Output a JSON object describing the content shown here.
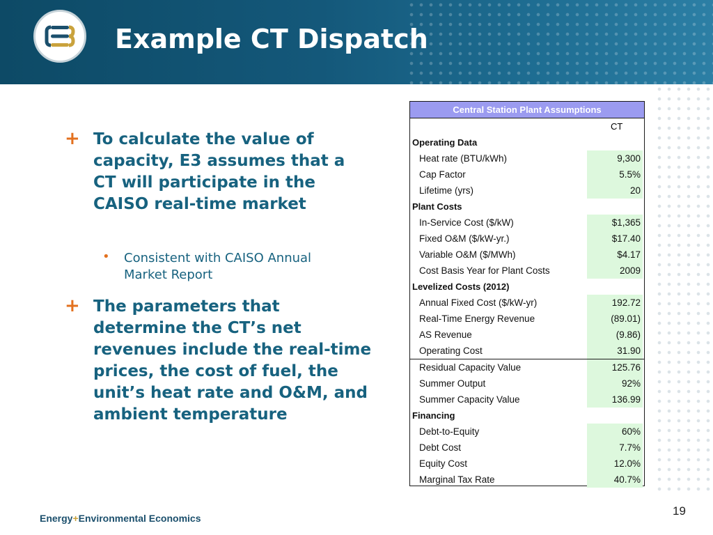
{
  "slide": {
    "title": "Example CT Dispatch",
    "page_number": "19",
    "logo_text": "E3",
    "footer": {
      "left": "Energy",
      "plus": "+",
      "right": "Environmental Economics"
    }
  },
  "bullets": [
    {
      "marker": "+",
      "text": "To calculate the value of capacity, E3 assumes that a CT will participate in the CAISO real-time market"
    },
    {
      "marker": "+",
      "text": "The parameters that determine the CT’s net revenues include the real-time prices, the cost of fuel, the unit’s heat rate and O&M, and ambient temperature"
    }
  ],
  "sub_bullet": {
    "marker": "•",
    "text": "Consistent with CAISO Annual Market Report"
  },
  "table": {
    "header": "Central Station Plant Assumptions",
    "column": "CT",
    "rows": [
      {
        "label": "Operating Data",
        "section": true
      },
      {
        "label": "Heat rate (BTU/kWh)",
        "value": "9,300"
      },
      {
        "label": "Cap Factor",
        "value": "5.5%"
      },
      {
        "label": "Lifetime (yrs)",
        "value": "20"
      },
      {
        "label": "Plant Costs",
        "section": true
      },
      {
        "label": "In-Service Cost ($/kW)",
        "value": "$1,365"
      },
      {
        "label": "Fixed O&M ($/kW-yr.)",
        "value": "$17.40"
      },
      {
        "label": "Variable O&M ($/MWh)",
        "value": "$4.17"
      },
      {
        "label": "Cost Basis Year for Plant Costs",
        "value": "2009"
      },
      {
        "label": "Levelized Costs (2012)",
        "section": true
      },
      {
        "label": "Annual Fixed Cost ($/kW-yr)",
        "value": "192.72"
      },
      {
        "label": "Real-Time Energy Revenue",
        "value": "(89.01)"
      },
      {
        "label": "AS Revenue",
        "value": "(9.86)"
      },
      {
        "label": "Operating Cost",
        "value": "31.90"
      },
      {
        "label": "Residual Capacity Value",
        "value": "125.76"
      },
      {
        "label": "Summer Output",
        "value": "92%"
      },
      {
        "label": "Summer Capacity Value",
        "value": "136.99"
      },
      {
        "label": "Financing",
        "section": true
      },
      {
        "label": "Debt-to-Equity",
        "value": "60%"
      },
      {
        "label": "Debt Cost",
        "value": "7.7%"
      },
      {
        "label": "Equity Cost",
        "value": "12.0%"
      },
      {
        "label": "Marginal Tax Rate",
        "value": "40.7%"
      }
    ]
  },
  "colors": {
    "header_bg": "#14587a",
    "table_header_bg": "#9b9bf0",
    "value_cell_bg": "#ddf8dd",
    "bullet_marker": "#e3711f",
    "body_text": "#17627f"
  }
}
